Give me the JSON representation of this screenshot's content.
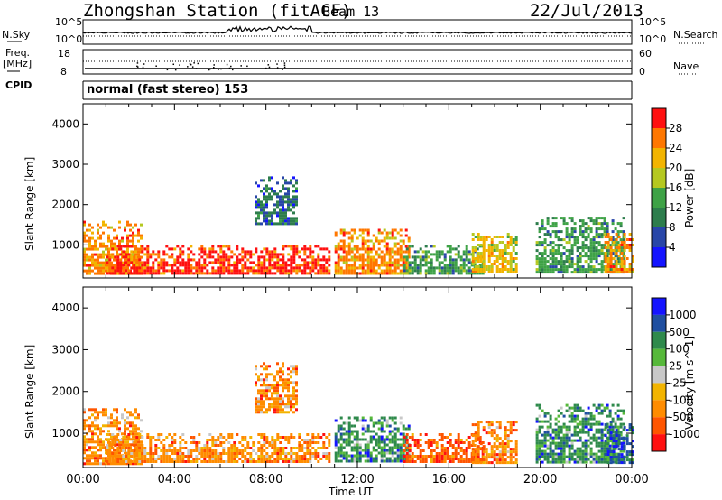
{
  "header": {
    "station": "Zhongshan Station (fitACF)",
    "beam": "Beam 13",
    "date": "22/Jul/2013"
  },
  "panels": {
    "nsky": {
      "left_label": "N.Sky",
      "right_label": "N.Search",
      "left_ticks": [
        "10^5",
        "10^0"
      ],
      "right_ticks": [
        "10^5",
        "10^0"
      ]
    },
    "freq": {
      "left_label_1": "Freq.",
      "left_label_2": "[MHz]",
      "left_ticks": [
        "18",
        "8"
      ],
      "right_label": "Nave",
      "right_ticks": [
        "60",
        "0"
      ]
    },
    "cpid": {
      "label": "CPID",
      "value": "normal (fast stereo) 153"
    }
  },
  "time_axis": {
    "xlabel": "Time UT",
    "ticks": [
      "00:00",
      "04:00",
      "08:00",
      "12:00",
      "16:00",
      "20:00",
      "00:00"
    ]
  },
  "colors": {
    "power": [
      "#1414ff",
      "#2846a8",
      "#2d7d4c",
      "#3ea246",
      "#b5c820",
      "#f2b400",
      "#ff7700",
      "#ff1010"
    ],
    "velocity": [
      "#1414ff",
      "#1f4fa0",
      "#2f8a4c",
      "#56b83a",
      "#c8c8c8",
      "#f2b400",
      "#ff8c00",
      "#ff5500",
      "#ff1010"
    ]
  },
  "chart_data": [
    {
      "type": "heatmap",
      "title": "",
      "xlabel": "",
      "ylabel": "Slant Range [km]",
      "xlim": [
        "00:00",
        "00:00"
      ],
      "ylim": [
        180,
        4500
      ],
      "yticks": [
        1000,
        2000,
        3000,
        4000
      ],
      "colorbar": {
        "label": "Power [dB]",
        "range": [
          0,
          32
        ],
        "ticks": [
          "4",
          "8",
          "12",
          "16",
          "20",
          "24",
          "28"
        ]
      },
      "regions": [
        {
          "t_start": 0.0,
          "t_end": 2.5,
          "r_low": 300,
          "r_high": 1600,
          "dominant_dB": 24
        },
        {
          "t_start": 1.0,
          "t_end": 10.8,
          "r_low": 300,
          "r_high": 1000,
          "dominant_dB": 28
        },
        {
          "t_start": 7.5,
          "t_end": 9.3,
          "r_low": 1500,
          "r_high": 2700,
          "dominant_dB": 8
        },
        {
          "t_start": 11.0,
          "t_end": 14.2,
          "r_low": 300,
          "r_high": 1400,
          "dominant_dB": 24
        },
        {
          "t_start": 14.0,
          "t_end": 17.5,
          "r_low": 300,
          "r_high": 1000,
          "dominant_dB": 12
        },
        {
          "t_start": 17.0,
          "t_end": 19.0,
          "r_low": 300,
          "r_high": 1300,
          "dominant_dB": 20
        },
        {
          "t_start": 19.8,
          "t_end": 23.7,
          "r_low": 300,
          "r_high": 1700,
          "dominant_dB": 12
        },
        {
          "t_start": 22.8,
          "t_end": 24.0,
          "r_low": 300,
          "r_high": 1300,
          "dominant_dB": 24
        }
      ]
    },
    {
      "type": "heatmap",
      "title": "",
      "xlabel": "Time UT",
      "ylabel": "Slant Range [km]",
      "xlim": [
        "00:00",
        "00:00"
      ],
      "ylim": [
        180,
        4500
      ],
      "yticks": [
        1000,
        2000,
        3000,
        4000
      ],
      "colorbar": {
        "label": "Velocity [m s^-1]",
        "ticks": [
          "1000",
          "500",
          "100",
          "25",
          "-25",
          "-100",
          "-500",
          "-1000"
        ]
      },
      "regions": [
        {
          "t_start": 0.0,
          "t_end": 2.5,
          "r_low": 300,
          "r_high": 1600,
          "dominant_ms": -100
        },
        {
          "t_start": 1.0,
          "t_end": 10.8,
          "r_low": 300,
          "r_high": 1000,
          "dominant_ms": -100
        },
        {
          "t_start": 7.5,
          "t_end": 9.3,
          "r_low": 1500,
          "r_high": 2700,
          "dominant_ms": -100
        },
        {
          "t_start": 11.0,
          "t_end": 14.2,
          "r_low": 300,
          "r_high": 1400,
          "dominant_ms": 100
        },
        {
          "t_start": 14.0,
          "t_end": 17.5,
          "r_low": 300,
          "r_high": 1000,
          "dominant_ms": -500
        },
        {
          "t_start": 17.0,
          "t_end": 19.0,
          "r_low": 300,
          "r_high": 1300,
          "dominant_ms": -100
        },
        {
          "t_start": 19.8,
          "t_end": 23.7,
          "r_low": 300,
          "r_high": 1700,
          "dominant_ms": 100
        },
        {
          "t_start": 22.8,
          "t_end": 24.0,
          "r_low": 300,
          "r_high": 1300,
          "dominant_ms": 500
        }
      ]
    }
  ]
}
